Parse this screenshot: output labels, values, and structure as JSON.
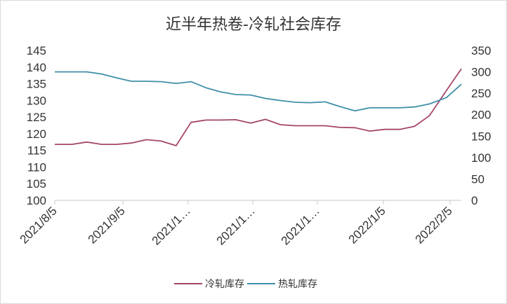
{
  "chart_data": {
    "type": "line",
    "title": "近半年热卷-冷轧社会库存",
    "x_tick_labels": [
      "2021/8/5",
      "2021/9/5",
      "2021/1…",
      "2021/1…",
      "2021/1…",
      "2022/1/5",
      "2022/2/5"
    ],
    "y_left": {
      "range": [
        100,
        145
      ],
      "ticks": [
        100,
        105,
        110,
        115,
        120,
        125,
        130,
        135,
        140,
        145
      ]
    },
    "y_right": {
      "range": [
        0,
        350
      ],
      "ticks": [
        0,
        50,
        100,
        150,
        200,
        250,
        300,
        350
      ]
    },
    "grid": false,
    "legend_position": "bottom",
    "x_domain": [
      "2021-08-05",
      "2022-02-12"
    ],
    "series": [
      {
        "name": "冷轧库存",
        "axis": "left",
        "color": "#a4456b",
        "points": [
          [
            "2021-08-05",
            116.8
          ],
          [
            "2021-08-13",
            116.8
          ],
          [
            "2021-08-20",
            117.5
          ],
          [
            "2021-08-27",
            116.8
          ],
          [
            "2021-09-03",
            116.8
          ],
          [
            "2021-09-10",
            117.2
          ],
          [
            "2021-09-17",
            118.2
          ],
          [
            "2021-09-24",
            117.8
          ],
          [
            "2021-10-01",
            116.4
          ],
          [
            "2021-10-08",
            123.4
          ],
          [
            "2021-10-15",
            124.1
          ],
          [
            "2021-10-22",
            124.1
          ],
          [
            "2021-10-29",
            124.2
          ],
          [
            "2021-11-05",
            123.2
          ],
          [
            "2021-11-12",
            124.3
          ],
          [
            "2021-11-19",
            122.7
          ],
          [
            "2021-11-26",
            122.4
          ],
          [
            "2021-12-03",
            122.4
          ],
          [
            "2021-12-10",
            122.4
          ],
          [
            "2021-12-17",
            121.9
          ],
          [
            "2021-12-24",
            121.8
          ],
          [
            "2021-12-31",
            120.8
          ],
          [
            "2022-01-07",
            121.3
          ],
          [
            "2022-01-14",
            121.3
          ],
          [
            "2022-01-21",
            122.2
          ],
          [
            "2022-01-28",
            125.4
          ],
          [
            "2022-02-05",
            133.0
          ],
          [
            "2022-02-12",
            139.5
          ]
        ]
      },
      {
        "name": "热轧库存",
        "axis": "right",
        "color": "#3f8fa8",
        "points": [
          [
            "2021-08-05",
            300
          ],
          [
            "2021-08-13",
            300
          ],
          [
            "2021-08-20",
            300
          ],
          [
            "2021-08-27",
            295
          ],
          [
            "2021-09-03",
            286
          ],
          [
            "2021-09-10",
            278
          ],
          [
            "2021-09-17",
            278
          ],
          [
            "2021-09-24",
            277
          ],
          [
            "2021-10-01",
            273
          ],
          [
            "2021-10-08",
            277
          ],
          [
            "2021-10-15",
            263
          ],
          [
            "2021-10-22",
            253
          ],
          [
            "2021-10-29",
            247
          ],
          [
            "2021-11-05",
            246
          ],
          [
            "2021-11-12",
            238
          ],
          [
            "2021-11-19",
            233
          ],
          [
            "2021-11-26",
            229
          ],
          [
            "2021-12-03",
            228
          ],
          [
            "2021-12-10",
            230
          ],
          [
            "2021-12-17",
            219
          ],
          [
            "2021-12-24",
            209
          ],
          [
            "2021-12-31",
            216
          ],
          [
            "2022-01-07",
            216
          ],
          [
            "2022-01-14",
            216
          ],
          [
            "2022-01-21",
            218
          ],
          [
            "2022-01-28",
            225
          ],
          [
            "2022-02-05",
            240
          ],
          [
            "2022-02-12",
            271
          ]
        ]
      }
    ]
  }
}
